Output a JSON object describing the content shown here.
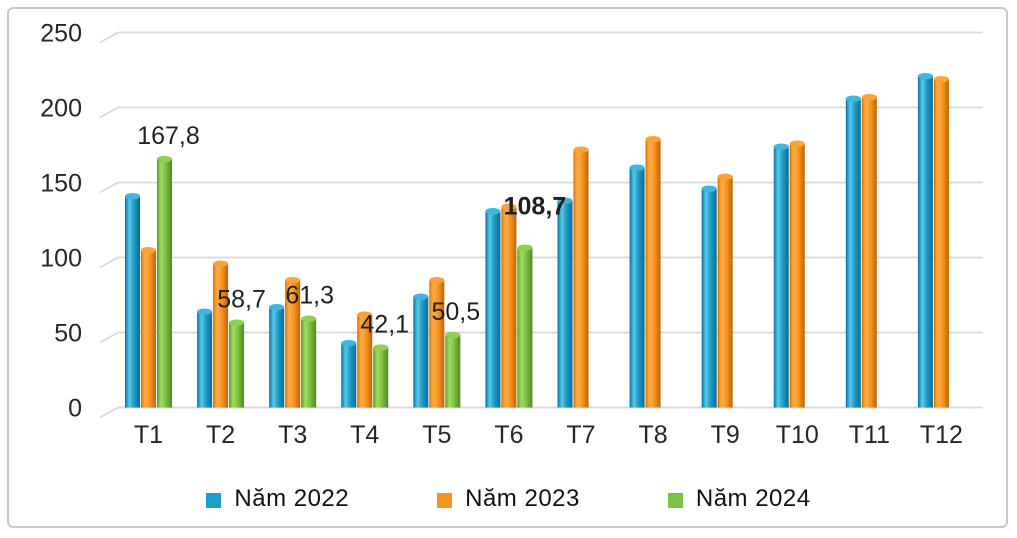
{
  "chart_data": {
    "type": "bar",
    "title": "",
    "xlabel": "",
    "ylabel": "",
    "categories": [
      "T1",
      "T2",
      "T3",
      "T4",
      "T5",
      "T6",
      "T7",
      "T8",
      "T9",
      "T10",
      "T11",
      "T12"
    ],
    "series": [
      {
        "name": "Năm 2022",
        "color_main": "#1E9EC9",
        "color_light": "#5FC8E6",
        "color_dark": "#0C6B8D",
        "color_cap": "#3FB6DB",
        "values": [
          143,
          66,
          69,
          45,
          76,
          133,
          140,
          162,
          148,
          176,
          208,
          223
        ]
      },
      {
        "name": "Năm 2023",
        "color_main": "#F79420",
        "color_light": "#FBAE4A",
        "color_dark": "#C06404",
        "color_cap": "#F9A339",
        "values": [
          107,
          98,
          87,
          64,
          87,
          136,
          174,
          181,
          156,
          178,
          209,
          221
        ]
      },
      {
        "name": "Năm 2024",
        "color_main": "#7DC142",
        "color_light": "#A2DB62",
        "color_dark": "#4C8A20",
        "color_cap": "#90CF55",
        "values": [
          167.8,
          58.7,
          61.3,
          42.1,
          50.5,
          108.7,
          null,
          null,
          null,
          null,
          null,
          null
        ],
        "data_labels": [
          "167,8",
          "58,7",
          "61,3",
          "42,1",
          "50,5",
          "108,7"
        ]
      }
    ],
    "ylim": [
      0,
      250
    ],
    "yticks": [
      0,
      50,
      100,
      150,
      200,
      250
    ],
    "grid": true,
    "grid_color": "#d9d9d9",
    "axis_text_color": "#262626",
    "data_label_color": "#1f1f1f",
    "legend_position": "bottom",
    "effect": "3d-cylinder"
  }
}
